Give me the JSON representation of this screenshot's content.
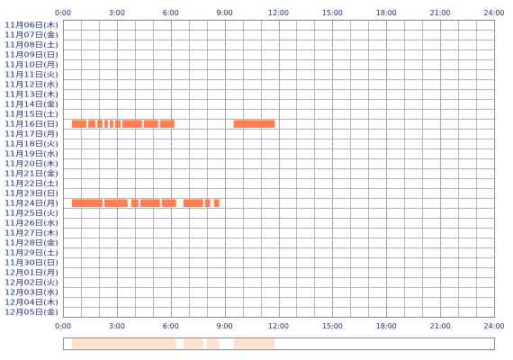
{
  "chart_data": {
    "type": "timeline",
    "title": "",
    "xlabel": "",
    "ylabel": "",
    "xlim": [
      0,
      24
    ],
    "x_ticks": [
      "0:00",
      "3:00",
      "6:00",
      "9:00",
      "12:00",
      "15:00",
      "18:00",
      "21:00",
      "24:00"
    ],
    "grid": true,
    "rows": [
      "11月06日(木)",
      "11月07日(金)",
      "11月08日(土)",
      "11月09日(日)",
      "11月10日(月)",
      "11月11日(火)",
      "11月12日(水)",
      "11月13日(木)",
      "11月14日(金)",
      "11月15日(土)",
      "11月16日(日)",
      "11月17日(月)",
      "11月18日(火)",
      "11月19日(水)",
      "11月20日(木)",
      "11月21日(金)",
      "11月22日(土)",
      "11月23日(日)",
      "11月24日(月)",
      "11月25日(火)",
      "11月26日(水)",
      "11月27日(木)",
      "11月28日(金)",
      "11月29日(土)",
      "11月30日(日)",
      "12月01日(月)",
      "12月02日(火)",
      "12月03日(水)",
      "12月04日(木)",
      "12月05日(金)"
    ],
    "segments": [
      {
        "row": "11月16日(日)",
        "start": 0.5,
        "end": 1.3
      },
      {
        "row": "11月16日(日)",
        "start": 1.4,
        "end": 1.8
      },
      {
        "row": "11月16日(日)",
        "start": 1.9,
        "end": 2.2
      },
      {
        "row": "11月16日(日)",
        "start": 2.3,
        "end": 2.5
      },
      {
        "row": "11月16日(日)",
        "start": 2.6,
        "end": 2.8
      },
      {
        "row": "11月16日(日)",
        "start": 2.9,
        "end": 3.2
      },
      {
        "row": "11月16日(日)",
        "start": 3.3,
        "end": 4.4
      },
      {
        "row": "11月16日(日)",
        "start": 4.5,
        "end": 5.3
      },
      {
        "row": "11月16日(日)",
        "start": 5.4,
        "end": 6.2
      },
      {
        "row": "11月16日(日)",
        "start": 9.5,
        "end": 11.8
      },
      {
        "row": "11月24日(月)",
        "start": 0.5,
        "end": 2.2
      },
      {
        "row": "11月24日(月)",
        "start": 2.3,
        "end": 3.6
      },
      {
        "row": "11月24日(月)",
        "start": 3.8,
        "end": 4.2
      },
      {
        "row": "11月24日(月)",
        "start": 4.3,
        "end": 5.4
      },
      {
        "row": "11月24日(月)",
        "start": 5.5,
        "end": 6.3
      },
      {
        "row": "11月24日(月)",
        "start": 6.7,
        "end": 7.8
      },
      {
        "row": "11月24日(月)",
        "start": 7.9,
        "end": 8.2
      },
      {
        "row": "11月24日(月)",
        "start": 8.4,
        "end": 8.7
      }
    ],
    "overview_segments": [
      {
        "start": 0.5,
        "end": 6.3
      },
      {
        "start": 6.7,
        "end": 7.8
      },
      {
        "start": 8.0,
        "end": 8.7
      },
      {
        "start": 9.5,
        "end": 11.8
      }
    ]
  },
  "colors": {
    "bar": "#ff7f50",
    "overview_bar": "#ffe0cc",
    "grid": "#b4b4b4",
    "grid_major": "#a0a0a0",
    "frame": "#888888",
    "label": "#1a2a8a"
  }
}
